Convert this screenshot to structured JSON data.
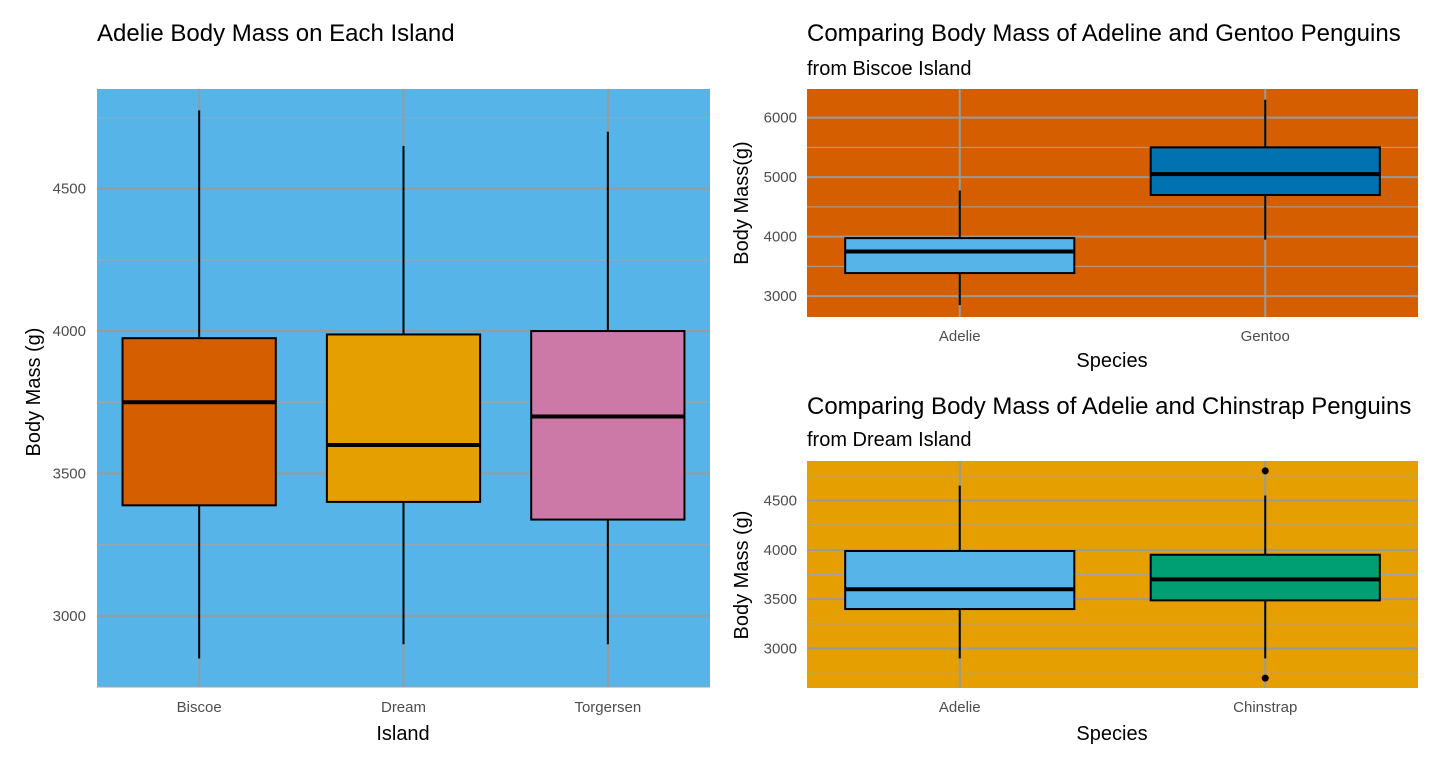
{
  "chart_data": [
    {
      "type": "boxplot",
      "title": "Adelie Body Mass on Each Island",
      "subtitle": "",
      "xlabel": "Island",
      "ylabel": "Body Mass (g)",
      "panel_color": "#56B4E9",
      "ylim": [
        2750,
        4850
      ],
      "yticks": [
        3000,
        3500,
        4000,
        4500
      ],
      "ytick_labels": [
        "3000",
        "3500",
        "4000",
        "4500"
      ],
      "categories": [
        "Biscoe",
        "Dream",
        "Torgersen"
      ],
      "boxes": [
        {
          "category": "Biscoe",
          "min": 2850,
          "q1": 3388,
          "median": 3750,
          "q3": 3975,
          "max": 4775,
          "fill": "#D55E00",
          "outliers": []
        },
        {
          "category": "Dream",
          "min": 2900,
          "q1": 3400,
          "median": 3600,
          "q3": 3988,
          "max": 4650,
          "fill": "#E69F00",
          "outliers": []
        },
        {
          "category": "Torgersen",
          "min": 2900,
          "q1": 3338,
          "median": 3700,
          "q3": 4000,
          "max": 4700,
          "fill": "#CC79A7",
          "outliers": []
        }
      ]
    },
    {
      "type": "boxplot",
      "title": "Comparing Body Mass of Adeline and Gentoo Penguins",
      "subtitle": "from Biscoe Island",
      "xlabel": "Species",
      "ylabel": "Body Mass(g)",
      "panel_color": "#D55E00",
      "ylim": [
        2650,
        6480
      ],
      "yticks": [
        3000,
        4000,
        5000,
        6000
      ],
      "ytick_labels": [
        "3000",
        "4000",
        "5000",
        "6000"
      ],
      "categories": [
        "Adelie",
        "Gentoo"
      ],
      "boxes": [
        {
          "category": "Adelie",
          "min": 2850,
          "q1": 3388,
          "median": 3750,
          "q3": 3975,
          "max": 4775,
          "fill": "#56B4E9",
          "outliers": []
        },
        {
          "category": "Gentoo",
          "min": 3950,
          "q1": 4700,
          "median": 5050,
          "q3": 5500,
          "max": 6300,
          "fill": "#0072B2",
          "outliers": []
        }
      ]
    },
    {
      "type": "boxplot",
      "title": "Comparing Body Mass of Adelie and Chinstrap Penguins",
      "subtitle": "from Dream Island",
      "xlabel": "Species",
      "ylabel": "Body Mass (g)",
      "panel_color": "#E69F00",
      "ylim": [
        2600,
        4900
      ],
      "yticks": [
        3000,
        3500,
        4000,
        4500
      ],
      "ytick_labels": [
        "3000",
        "3500",
        "4000",
        "4500"
      ],
      "categories": [
        "Adelie",
        "Chinstrap"
      ],
      "boxes": [
        {
          "category": "Adelie",
          "min": 2900,
          "q1": 3400,
          "median": 3600,
          "q3": 3988,
          "max": 4650,
          "fill": "#56B4E9",
          "outliers": []
        },
        {
          "category": "Chinstrap",
          "min": 2900,
          "q1": 3488,
          "median": 3700,
          "q3": 3950,
          "max": 4550,
          "fill": "#009E73",
          "outliers": [
            2700,
            4800
          ]
        }
      ]
    }
  ]
}
